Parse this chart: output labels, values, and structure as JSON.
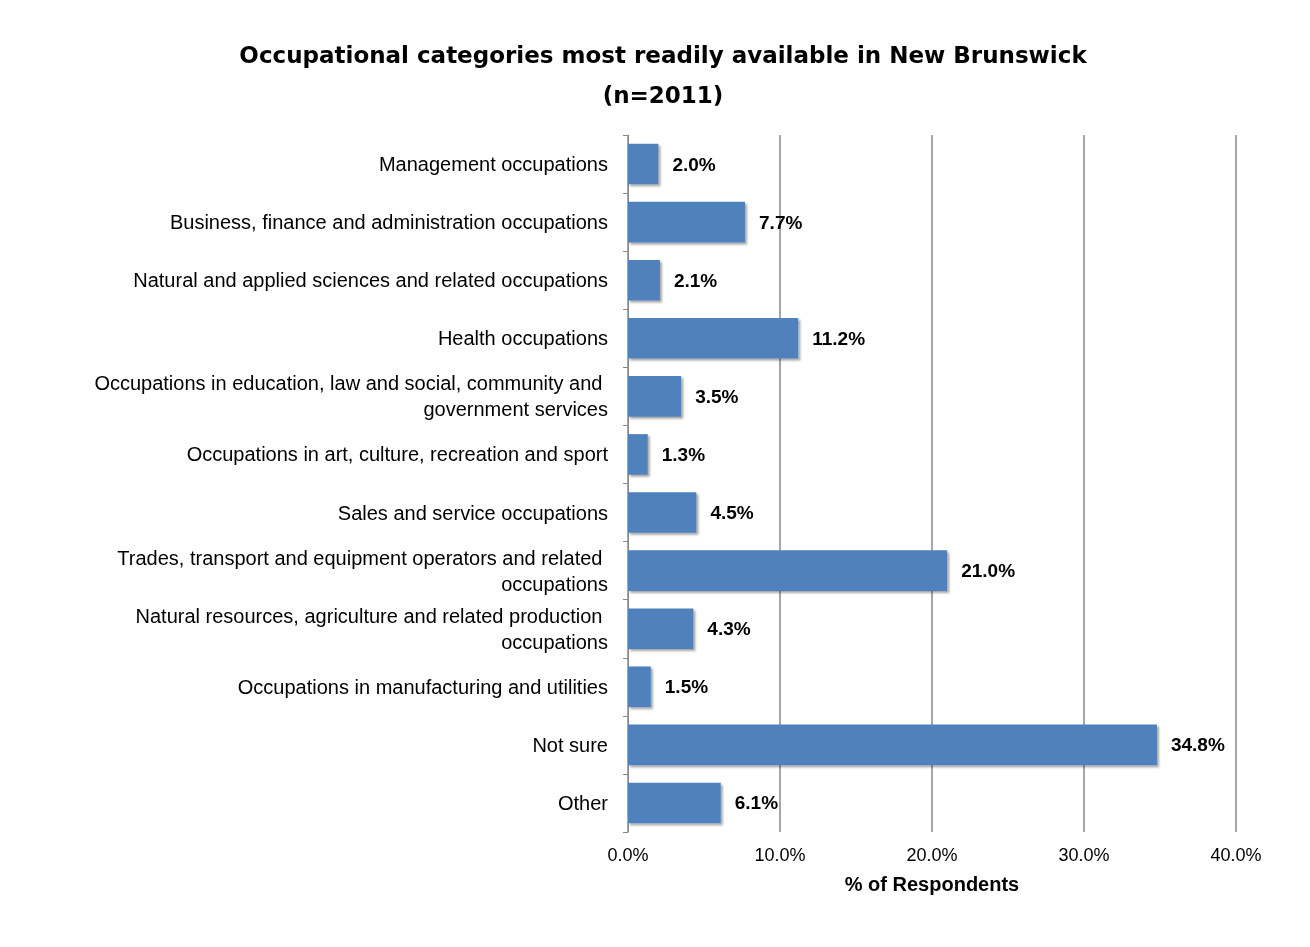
{
  "chart_data": {
    "type": "bar",
    "orientation": "horizontal",
    "title": "Occupational categories most readily available in New Brunswick\n(n=2011)",
    "xlabel": "% of Respondents",
    "categories": [
      "Management occupations",
      "Business, finance and administration occupations",
      "Natural and applied sciences and related occupations",
      "Health occupations",
      "Occupations in education, law and social, community and government services",
      "Occupations in art, culture, recreation and sport",
      "Sales and service occupations",
      "Trades, transport and equipment operators and related occupations",
      "Natural resources, agriculture and related production occupations",
      "Occupations in manufacturing and utilities",
      "Not sure",
      "Other"
    ],
    "values": [
      2.0,
      7.7,
      2.1,
      11.2,
      3.5,
      1.3,
      4.5,
      21.0,
      4.3,
      1.5,
      34.8,
      6.1
    ],
    "value_labels": [
      "2.0%",
      "7.7%",
      "2.1%",
      "11.2%",
      "3.5%",
      "1.3%",
      "4.5%",
      "21.0%",
      "4.3%",
      "1.5%",
      "34.8%",
      "6.1%"
    ],
    "color": "#4f81bd",
    "xlim": [
      0,
      40
    ],
    "xticks": [
      {
        "value": 0,
        "label": "0.0%"
      },
      {
        "value": 10,
        "label": "10.0%"
      },
      {
        "value": 20,
        "label": "20.0%"
      },
      {
        "value": 30,
        "label": "30.0%"
      },
      {
        "value": 40,
        "label": "40.0%"
      }
    ],
    "grid": "x"
  }
}
